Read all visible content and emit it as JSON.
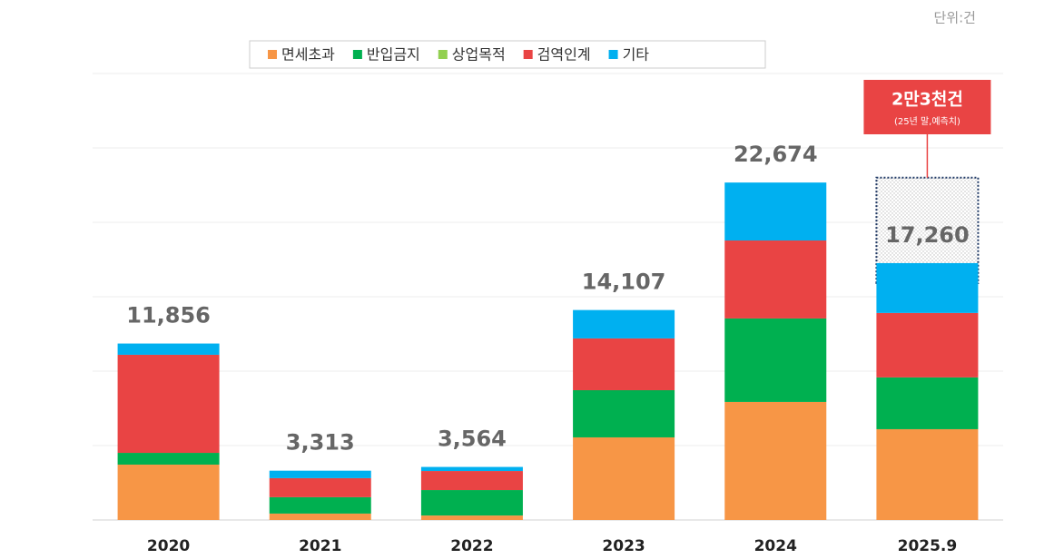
{
  "chart_data": {
    "type": "bar",
    "stacked": true,
    "unit": "단위:건",
    "categories": [
      "2020",
      "2021",
      "2022",
      "2023",
      "2024",
      "2025.9"
    ],
    "series": [
      {
        "name": "면세초과",
        "color": "#f79646",
        "values": [
          3720,
          430,
          300,
          5550,
          7930,
          6100
        ]
      },
      {
        "name": "반입금지",
        "color": "#00b050",
        "values": [
          790,
          1100,
          1710,
          3170,
          5610,
          3480
        ]
      },
      {
        "name": "상업목적",
        "color": "#92d050",
        "values": [
          0,
          0,
          0,
          0,
          0,
          0
        ]
      },
      {
        "name": "검역인계",
        "color": "#e94444",
        "values": [
          6590,
          1280,
          1280,
          3480,
          5240,
          4330
        ]
      },
      {
        "name": "기타",
        "color": "#00b0f0",
        "values": [
          756,
          503,
          274,
          1907,
          3894,
          3350
        ]
      }
    ],
    "totals": [
      11856,
      3313,
      3564,
      14107,
      22674,
      17260
    ],
    "totals_value_labels": [
      "11,856",
      "3,313",
      "3,564",
      "14,107",
      "22,674",
      "17,260"
    ],
    "forecast": {
      "value": 23000,
      "label": "2만3천건",
      "note": "(25년 말,예측치)"
    },
    "ylim": [
      0,
      30000
    ],
    "yticks": [
      0,
      5000,
      10000,
      15000,
      20000,
      25000,
      30000
    ],
    "grid": true
  }
}
